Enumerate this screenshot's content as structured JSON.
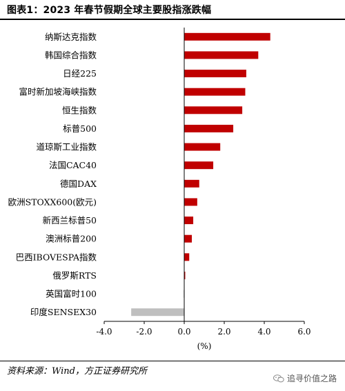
{
  "title": "图表1：2023 年春节假期全球主要股指涨跌幅",
  "source": "资料来源：Wind，方正证券研究所",
  "watermark": "追寻价值之路",
  "colors": {
    "positive": "#c00000",
    "negative": "#bfbfbf",
    "axis": "#000000"
  },
  "chart_data": {
    "type": "bar",
    "orientation": "horizontal",
    "title": "",
    "xlabel": "(%)",
    "ylabel": "",
    "xlim": [
      -4.0,
      6.0
    ],
    "xticks": [
      -4.0,
      -2.0,
      0.0,
      2.0,
      4.0,
      6.0
    ],
    "xtick_labels": [
      "-4.0",
      "-2.0",
      "0.0",
      "2.0",
      "4.0",
      "6.0"
    ],
    "categories": [
      "纳斯达克指数",
      "韩国综合指数",
      "日经225",
      "富时新加坡海峡指数",
      "恒生指数",
      "标普500",
      "道琼斯工业指数",
      "法国CAC40",
      "德国DAX",
      "欧洲STOXX600(欧元)",
      "新西兰标普50",
      "澳洲标普200",
      "巴西IBOVESPA指数",
      "俄罗斯RTS",
      "英国富时100",
      "印度SENSEX30"
    ],
    "values": [
      4.3,
      3.7,
      3.1,
      3.05,
      2.9,
      2.45,
      1.8,
      1.45,
      0.75,
      0.65,
      0.45,
      0.38,
      0.25,
      0.05,
      -0.03,
      -2.65
    ],
    "grid": false,
    "legend": "none"
  }
}
